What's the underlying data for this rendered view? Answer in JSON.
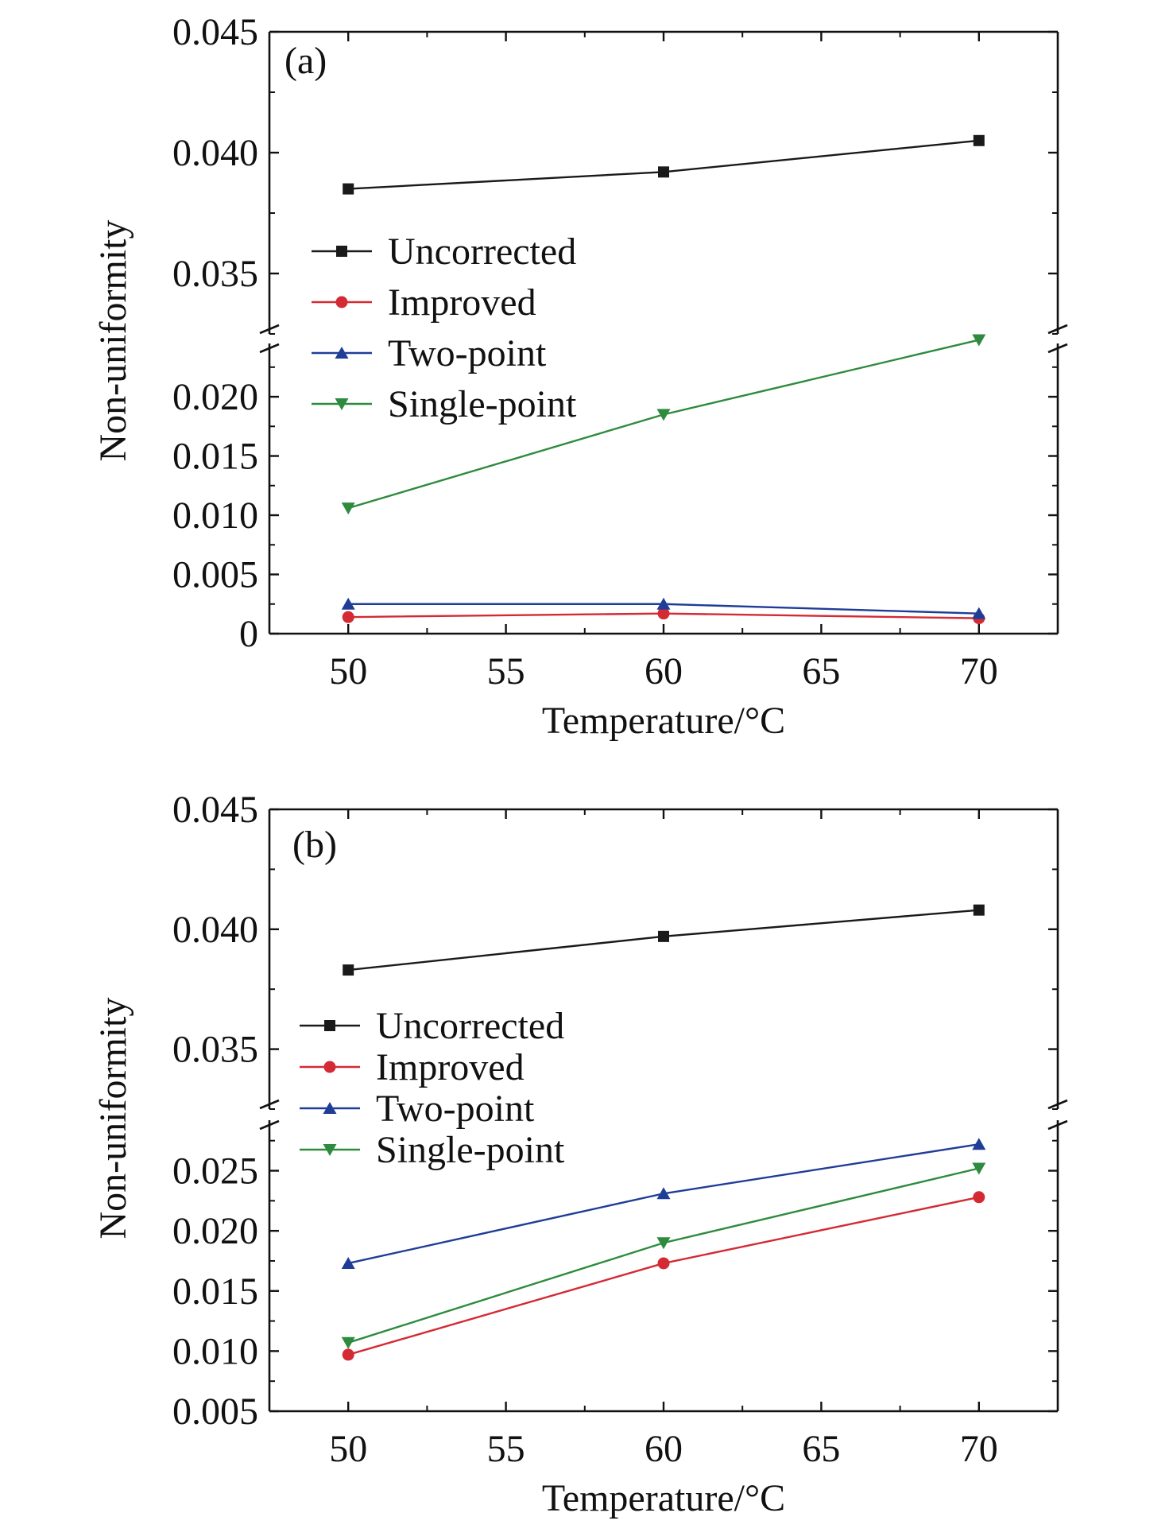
{
  "chart_data": [
    {
      "type": "line",
      "panel_label": "(a)",
      "xlabel": "Temperature/°C",
      "ylabel": "Non-uniformity",
      "x": [
        50,
        60,
        70
      ],
      "xlim": [
        47.5,
        72.5
      ],
      "x_ticks": [
        "50",
        "55",
        "60",
        "65",
        "70"
      ],
      "y_axis_broken": true,
      "ylim_lower": [
        0,
        0.0245
      ],
      "ylim_upper": [
        0.0325,
        0.045
      ],
      "y_ticks_lower": [
        "0",
        "0.005",
        "0.010",
        "0.015",
        "0.020"
      ],
      "y_ticks_upper": [
        "0.035",
        "0.040",
        "0.045"
      ],
      "legend_position": "center-left",
      "series": [
        {
          "name": "Uncorrected",
          "color": "#1a1a1a",
          "marker": "square",
          "values": [
            0.0385,
            0.0392,
            0.0405
          ]
        },
        {
          "name": "Improved",
          "color": "#d42a34",
          "marker": "circle",
          "values": [
            0.0014,
            0.0017,
            0.0013
          ]
        },
        {
          "name": "Two-point",
          "color": "#1f3d97",
          "marker": "triangle-up",
          "values": [
            0.0025,
            0.0025,
            0.0017
          ]
        },
        {
          "name": "Single-point",
          "color": "#2e8b3e",
          "marker": "triangle-down",
          "values": [
            0.0106,
            0.0185,
            0.0248
          ]
        }
      ]
    },
    {
      "type": "line",
      "panel_label": "(b)",
      "xlabel": "Temperature/°C",
      "ylabel": "Non-uniformity",
      "x": [
        50,
        60,
        70
      ],
      "xlim": [
        47.5,
        72.5
      ],
      "x_ticks": [
        "50",
        "55",
        "60",
        "65",
        "70"
      ],
      "y_axis_broken": true,
      "ylim_lower": [
        0.005,
        0.0292
      ],
      "ylim_upper": [
        0.0325,
        0.045
      ],
      "y_ticks_lower": [
        "0.005",
        "0.010",
        "0.015",
        "0.020",
        "0.025"
      ],
      "y_ticks_upper": [
        "0.035",
        "0.040",
        "0.045"
      ],
      "legend_position": "center-left",
      "series": [
        {
          "name": "Uncorrected",
          "color": "#1a1a1a",
          "marker": "square",
          "values": [
            0.0383,
            0.0397,
            0.0408
          ]
        },
        {
          "name": "Improved",
          "color": "#d42a34",
          "marker": "circle",
          "values": [
            0.0097,
            0.0173,
            0.0228
          ]
        },
        {
          "name": "Two-point",
          "color": "#1f3d97",
          "marker": "triangle-up",
          "values": [
            0.0173,
            0.0231,
            0.0272
          ]
        },
        {
          "name": "Single-point",
          "color": "#2e8b3e",
          "marker": "triangle-down",
          "values": [
            0.0107,
            0.019,
            0.0252
          ]
        }
      ]
    }
  ]
}
